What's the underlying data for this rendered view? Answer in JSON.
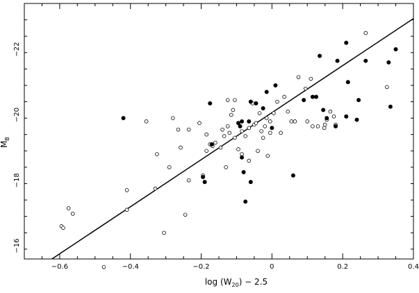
{
  "chart_data": {
    "type": "scatter",
    "title": "",
    "xlabel": "log (W",
    "xlabel_sub": "20",
    "xlabel_suffix": ") − 2.5",
    "ylabel": "M",
    "ylabel_sub": "B",
    "xlim": [
      -0.7,
      0.4
    ],
    "ylim": [
      -15.6,
      -23.4
    ],
    "y_inverted": true,
    "grid": false,
    "x_ticks": [
      {
        "value": -0.6,
        "label": "−0.6"
      },
      {
        "value": -0.4,
        "label": "−0.4"
      },
      {
        "value": -0.2,
        "label": "−0.2"
      },
      {
        "value": 0,
        "label": "0"
      },
      {
        "value": 0.2,
        "label": "0.2"
      },
      {
        "value": 0.4,
        "label": "0.4"
      }
    ],
    "y_ticks": [
      {
        "value": -16,
        "label": "−16"
      },
      {
        "value": -18,
        "label": "−18"
      },
      {
        "value": -20,
        "label": "−20"
      },
      {
        "value": -22,
        "label": "−22"
      }
    ],
    "fit_line": {
      "x": [
        -0.7,
        0.4
      ],
      "y": [
        -15.04,
        -22.94
      ]
    },
    "series": [
      {
        "marker": "open-circle",
        "points": [
          [
            -0.595,
            -16.6
          ],
          [
            -0.59,
            -16.55
          ],
          [
            -0.575,
            -17.15
          ],
          [
            -0.563,
            -16.98
          ],
          [
            -0.475,
            -15.35
          ],
          [
            -0.41,
            -17.1
          ],
          [
            -0.41,
            -17.7
          ],
          [
            -0.355,
            -19.8
          ],
          [
            -0.33,
            -17.75
          ],
          [
            -0.325,
            -18.8
          ],
          [
            -0.305,
            -16.4
          ],
          [
            -0.29,
            -18.4
          ],
          [
            -0.28,
            -19.9
          ],
          [
            -0.265,
            -19.55
          ],
          [
            -0.258,
            -19.0
          ],
          [
            -0.245,
            -16.95
          ],
          [
            -0.235,
            -18.0
          ],
          [
            -0.235,
            -19.55
          ],
          [
            -0.205,
            -19.75
          ],
          [
            -0.195,
            -18.15
          ],
          [
            -0.185,
            -18.9
          ],
          [
            -0.185,
            -19.4
          ],
          [
            -0.175,
            -19.1
          ],
          [
            -0.168,
            -19.05
          ],
          [
            -0.16,
            -19.15
          ],
          [
            -0.145,
            -19.0
          ],
          [
            -0.14,
            -19.55
          ],
          [
            -0.135,
            -19.35
          ],
          [
            -0.13,
            -18.4
          ],
          [
            -0.125,
            -19.65
          ],
          [
            -0.125,
            -20.45
          ],
          [
            -0.12,
            -19.45
          ],
          [
            -0.115,
            -20.0
          ],
          [
            -0.11,
            -20.15
          ],
          [
            -0.105,
            -20.45
          ],
          [
            -0.105,
            -19.3
          ],
          [
            -0.095,
            -18.95
          ],
          [
            -0.085,
            -18.8
          ],
          [
            -0.085,
            -19.5
          ],
          [
            -0.075,
            -19.35
          ],
          [
            -0.065,
            -18.6
          ],
          [
            -0.065,
            -19.6
          ],
          [
            -0.055,
            -20.35
          ],
          [
            -0.05,
            -19.7
          ],
          [
            -0.045,
            -19.75
          ],
          [
            -0.04,
            -18.9
          ],
          [
            -0.035,
            -20.05
          ],
          [
            -0.03,
            -19.5
          ],
          [
            -0.025,
            -19.3
          ],
          [
            -0.02,
            -19.65
          ],
          [
            -0.015,
            -19.9
          ],
          [
            -0.012,
            -18.75
          ],
          [
            -0.005,
            -19.8
          ],
          [
            -0.005,
            -19.45
          ],
          [
            0.005,
            -20.05
          ],
          [
            0.015,
            -20.4
          ],
          [
            0.025,
            -19.45
          ],
          [
            0.035,
            -20.55
          ],
          [
            0.045,
            -20.1
          ],
          [
            0.055,
            -19.8
          ],
          [
            0.065,
            -19.8
          ],
          [
            0.075,
            -21.15
          ],
          [
            0.095,
            -20.8
          ],
          [
            0.1,
            -19.8
          ],
          [
            0.11,
            -21.1
          ],
          [
            0.115,
            -19.65
          ],
          [
            0.13,
            -19.65
          ],
          [
            0.148,
            -19.6
          ],
          [
            0.15,
            -19.7
          ],
          [
            0.155,
            -19.85
          ],
          [
            0.165,
            -20.1
          ],
          [
            0.175,
            -19.95
          ],
          [
            0.18,
            -19.7
          ],
          [
            0.265,
            -22.5
          ],
          [
            0.325,
            -20.85
          ]
        ]
      },
      {
        "marker": "filled-circle",
        "points": [
          [
            -0.42,
            -19.9
          ],
          [
            -0.195,
            -18.1
          ],
          [
            -0.19,
            -17.95
          ],
          [
            -0.175,
            -20.35
          ],
          [
            -0.17,
            -19.1
          ],
          [
            -0.095,
            -19.75
          ],
          [
            -0.09,
            -19.65
          ],
          [
            -0.085,
            -18.7
          ],
          [
            -0.085,
            -19.8
          ],
          [
            -0.08,
            -18.25
          ],
          [
            -0.075,
            -17.35
          ],
          [
            -0.065,
            -19.8
          ],
          [
            -0.06,
            -20.4
          ],
          [
            -0.06,
            -17.95
          ],
          [
            -0.045,
            -20.35
          ],
          [
            -0.025,
            -20.2
          ],
          [
            -0.015,
            -20.7
          ],
          [
            0.0,
            -19.6
          ],
          [
            0.01,
            -20.9
          ],
          [
            0.06,
            -18.15
          ],
          [
            0.09,
            -20.45
          ],
          [
            0.115,
            -20.55
          ],
          [
            0.125,
            -20.55
          ],
          [
            0.135,
            -21.8
          ],
          [
            0.145,
            -20.15
          ],
          [
            0.155,
            -19.9
          ],
          [
            0.18,
            -19.65
          ],
          [
            0.185,
            -21.65
          ],
          [
            0.21,
            -22.2
          ],
          [
            0.21,
            -19.95
          ],
          [
            0.215,
            -21.0
          ],
          [
            0.24,
            -19.85
          ],
          [
            0.245,
            -20.45
          ],
          [
            0.265,
            -21.65
          ],
          [
            0.33,
            -21.6
          ],
          [
            0.335,
            -20.25
          ],
          [
            0.35,
            -22.0
          ]
        ]
      }
    ]
  }
}
